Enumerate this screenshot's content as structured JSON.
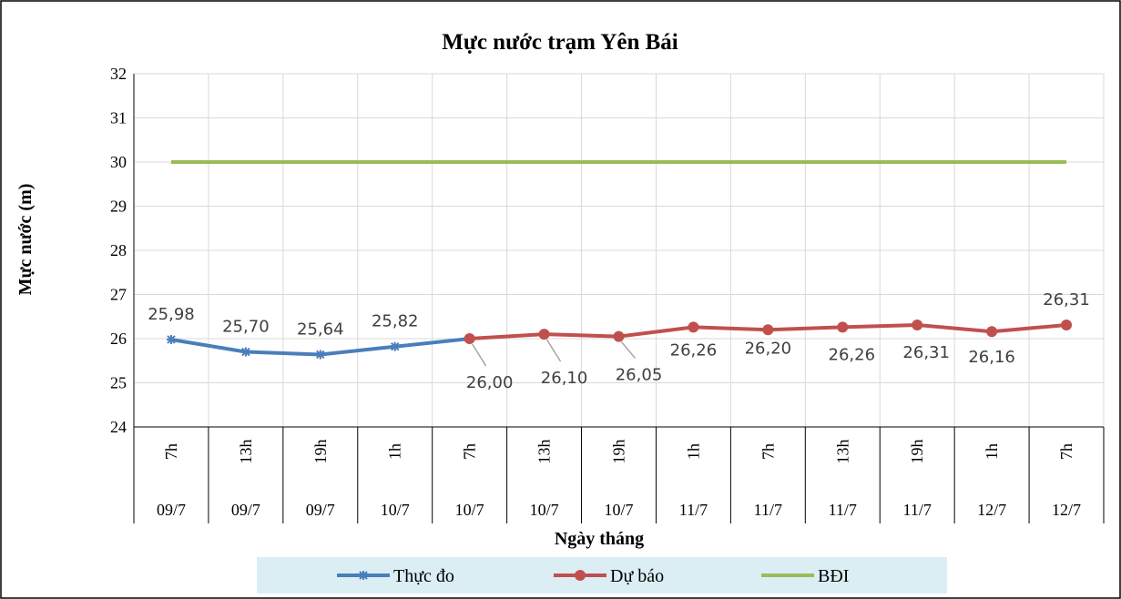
{
  "chart_data": {
    "type": "line",
    "title": "Mực nước trạm Yên Bái",
    "y_label": "Mực nước (m)",
    "x_label": "Ngày tháng",
    "categories": [
      "7h",
      "13h",
      "19h",
      "1h",
      "7h",
      "13h",
      "19h",
      "1h",
      "7h",
      "13h",
      "19h",
      "1h",
      "7h"
    ],
    "dates": [
      "09/7",
      "09/7",
      "09/7",
      "10/7",
      "10/7",
      "10/7",
      "10/7",
      "11/7",
      "11/7",
      "11/7",
      "11/7",
      "12/7",
      "12/7"
    ],
    "ylim": [
      24,
      32
    ],
    "yticks": [
      24,
      25,
      26,
      27,
      28,
      29,
      30,
      31,
      32
    ],
    "grid": true,
    "series": [
      {
        "name": "Thực đo",
        "color": "#4a7ebb",
        "marker": "star",
        "values": [
          25.98,
          25.7,
          25.64,
          25.82,
          26.0,
          null,
          null,
          null,
          null,
          null,
          null,
          null,
          null
        ],
        "value_labels": [
          "25,98",
          "25,70",
          "25,64",
          "25,82",
          null,
          null,
          null,
          null,
          null,
          null,
          null,
          null,
          null
        ]
      },
      {
        "name": "Dự báo",
        "color": "#c0504d",
        "marker": "circle",
        "values": [
          null,
          null,
          null,
          null,
          26.0,
          26.1,
          26.05,
          26.26,
          26.2,
          26.26,
          26.31,
          26.16,
          26.31
        ],
        "value_labels": [
          null,
          null,
          null,
          null,
          "26,00",
          "26,10",
          "26,05",
          "26,26",
          "26,20",
          "26,26",
          "26,31",
          "26,16",
          "26,31"
        ]
      },
      {
        "name": "BĐI",
        "color": "#9bbb59",
        "marker": "none",
        "values": [
          30,
          30,
          30,
          30,
          30,
          30,
          30,
          30,
          30,
          30,
          30,
          30,
          30
        ]
      }
    ]
  }
}
